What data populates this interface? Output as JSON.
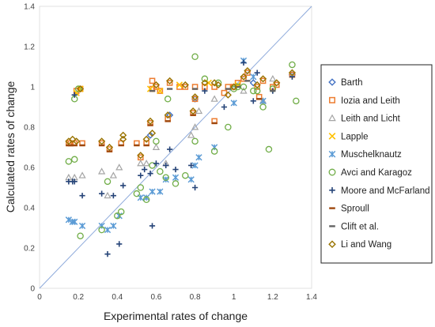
{
  "chart_data": {
    "type": "scatter",
    "xlabel": "Experimental rates of change",
    "ylabel": "Calculated rates of change",
    "xlim": [
      0,
      1.4
    ],
    "ylim": [
      0,
      1.4
    ],
    "x_ticks": [
      "0",
      "0.2",
      "0.4",
      "0.6",
      "0.8",
      "1",
      "1.2",
      "1.4"
    ],
    "y_ticks": [
      "0",
      "0.2",
      "0.4",
      "0.6",
      "0.8",
      "1",
      "1.2",
      "1.4"
    ],
    "grid": false,
    "legend_placement": "right",
    "reference_line": {
      "from": [
        0,
        0
      ],
      "to": [
        1.4,
        1.4
      ],
      "color": "#8eaadb"
    },
    "series": [
      {
        "name": "Barth",
        "marker": "diamond-open",
        "color": "#4472c4",
        "points": [
          [
            0.57,
            0.76
          ],
          [
            0.67,
            0.86
          ],
          [
            0.8,
            0.94
          ],
          [
            1.1,
            1.02
          ],
          [
            1.3,
            1.06
          ]
        ]
      },
      {
        "name": "Iozia and Leith",
        "marker": "square-open",
        "color": "#ed7d31",
        "points": [
          [
            0.15,
            0.72
          ],
          [
            0.16,
            0.72
          ],
          [
            0.18,
            0.72
          ],
          [
            0.22,
            0.72
          ],
          [
            0.32,
            0.72
          ],
          [
            0.36,
            0.69
          ],
          [
            0.42,
            0.72
          ],
          [
            0.5,
            0.72
          ],
          [
            0.52,
            0.65
          ],
          [
            0.55,
            0.72
          ],
          [
            0.57,
            0.82
          ],
          [
            0.58,
            1.03
          ],
          [
            0.58,
            0.99
          ],
          [
            0.6,
            1.0
          ],
          [
            0.62,
            0.98
          ],
          [
            0.66,
            0.84
          ],
          [
            0.67,
            1.02
          ],
          [
            0.72,
            1.0
          ],
          [
            0.75,
            1.0
          ],
          [
            0.79,
            0.87
          ],
          [
            0.8,
            0.94
          ],
          [
            0.8,
            1.0
          ],
          [
            0.85,
            1.0
          ],
          [
            0.9,
            0.83
          ],
          [
            0.9,
            1.0
          ],
          [
            0.95,
            0.97
          ],
          [
            0.97,
            1.0
          ],
          [
            1.0,
            1.0
          ],
          [
            1.02,
            1.02
          ],
          [
            1.05,
            1.04
          ],
          [
            1.07,
            1.07
          ],
          [
            1.12,
            1.0
          ],
          [
            1.13,
            0.95
          ],
          [
            1.15,
            1.03
          ],
          [
            1.2,
            1.0
          ],
          [
            1.22,
            1.01
          ],
          [
            1.3,
            1.06
          ],
          [
            0.19,
            0.98
          ],
          [
            0.21,
            0.99
          ]
        ]
      },
      {
        "name": "Leith and Licht",
        "marker": "triangle-open",
        "color": "#a5a5a5",
        "points": [
          [
            0.15,
            0.55
          ],
          [
            0.18,
            0.55
          ],
          [
            0.22,
            0.56
          ],
          [
            0.32,
            0.58
          ],
          [
            0.35,
            0.46
          ],
          [
            0.38,
            0.56
          ],
          [
            0.41,
            0.6
          ],
          [
            0.52,
            0.62
          ],
          [
            0.55,
            0.62
          ],
          [
            0.6,
            0.7
          ],
          [
            0.65,
            0.62
          ],
          [
            0.78,
            0.76
          ],
          [
            0.8,
            0.8
          ],
          [
            0.82,
            0.88
          ],
          [
            0.9,
            0.94
          ],
          [
            1.05,
            0.98
          ],
          [
            1.15,
            0.93
          ],
          [
            1.2,
            1.04
          ]
        ]
      },
      {
        "name": "Lapple",
        "marker": "x",
        "color": "#ffc000",
        "points": [
          [
            0.19,
            0.97
          ],
          [
            0.21,
            0.99
          ],
          [
            0.57,
            0.99
          ],
          [
            0.62,
            0.98
          ],
          [
            0.72,
            1.01
          ],
          [
            0.87,
            1.02
          ],
          [
            1.02,
            1.01
          ]
        ]
      },
      {
        "name": "Muschelknautz",
        "marker": "star",
        "color": "#5b9bd5",
        "points": [
          [
            0.15,
            0.34
          ],
          [
            0.17,
            0.33
          ],
          [
            0.18,
            0.33
          ],
          [
            0.22,
            0.31
          ],
          [
            0.32,
            0.31
          ],
          [
            0.35,
            0.29
          ],
          [
            0.38,
            0.31
          ],
          [
            0.41,
            0.36
          ],
          [
            0.52,
            0.45
          ],
          [
            0.55,
            0.45
          ],
          [
            0.58,
            0.48
          ],
          [
            0.62,
            0.48
          ],
          [
            0.65,
            0.54
          ],
          [
            0.7,
            0.55
          ],
          [
            0.78,
            0.54
          ],
          [
            0.8,
            0.61
          ],
          [
            0.82,
            0.65
          ],
          [
            0.9,
            0.7
          ],
          [
            1.0,
            0.92
          ],
          [
            1.05,
            1.13
          ],
          [
            1.1,
            1.05
          ],
          [
            1.15,
            0.93
          ]
        ]
      },
      {
        "name": "Avci and Karagoz",
        "marker": "circle-open",
        "color": "#70ad47",
        "points": [
          [
            0.15,
            0.63
          ],
          [
            0.18,
            0.64
          ],
          [
            0.18,
            0.94
          ],
          [
            0.2,
            0.99
          ],
          [
            0.21,
            0.26
          ],
          [
            0.32,
            0.29
          ],
          [
            0.35,
            0.53
          ],
          [
            0.4,
            0.36
          ],
          [
            0.42,
            0.38
          ],
          [
            0.5,
            0.47
          ],
          [
            0.52,
            0.5
          ],
          [
            0.55,
            0.44
          ],
          [
            0.58,
            0.61
          ],
          [
            0.6,
            0.73
          ],
          [
            0.62,
            0.58
          ],
          [
            0.65,
            0.55
          ],
          [
            0.66,
            0.94
          ],
          [
            0.7,
            0.52
          ],
          [
            0.75,
            0.56
          ],
          [
            0.8,
            0.73
          ],
          [
            0.8,
            1.15
          ],
          [
            0.85,
            1.04
          ],
          [
            0.9,
            0.68
          ],
          [
            0.92,
            1.02
          ],
          [
            0.97,
            0.8
          ],
          [
            1.0,
            0.99
          ],
          [
            1.02,
            1.0
          ],
          [
            1.05,
            1.0
          ],
          [
            1.1,
            0.98
          ],
          [
            1.12,
            0.98
          ],
          [
            1.15,
            0.9
          ],
          [
            1.18,
            0.69
          ],
          [
            1.2,
            0.99
          ],
          [
            1.3,
            1.11
          ],
          [
            1.32,
            0.93
          ]
        ]
      },
      {
        "name": "Moore and McFarland",
        "marker": "plus",
        "color": "#264478",
        "points": [
          [
            0.15,
            0.53
          ],
          [
            0.17,
            0.53
          ],
          [
            0.18,
            0.53
          ],
          [
            0.18,
            0.96
          ],
          [
            0.22,
            0.46
          ],
          [
            0.32,
            0.47
          ],
          [
            0.35,
            0.17
          ],
          [
            0.38,
            0.46
          ],
          [
            0.41,
            0.22
          ],
          [
            0.43,
            0.51
          ],
          [
            0.52,
            0.56
          ],
          [
            0.54,
            0.59
          ],
          [
            0.57,
            0.57
          ],
          [
            0.58,
            0.31
          ],
          [
            0.6,
            0.62
          ],
          [
            0.65,
            0.61
          ],
          [
            0.67,
            0.69
          ],
          [
            0.7,
            0.59
          ],
          [
            0.78,
            0.61
          ],
          [
            0.8,
            0.5
          ],
          [
            0.85,
            0.98
          ],
          [
            0.95,
            0.9
          ],
          [
            1.05,
            1.12
          ],
          [
            1.1,
            0.93
          ],
          [
            1.12,
            1.07
          ],
          [
            1.2,
            0.98
          ],
          [
            1.3,
            1.05
          ]
        ]
      },
      {
        "name": "Sproull",
        "marker": "dash",
        "color": "#9e480e",
        "points": [
          [
            0.15,
            0.71
          ],
          [
            0.16,
            0.71
          ],
          [
            0.18,
            0.71
          ],
          [
            0.22,
            0.71
          ],
          [
            0.32,
            0.71
          ],
          [
            0.36,
            0.68
          ],
          [
            0.42,
            0.71
          ],
          [
            0.5,
            0.71
          ],
          [
            0.55,
            0.71
          ],
          [
            0.57,
            0.81
          ],
          [
            0.66,
            0.83
          ],
          [
            0.79,
            0.86
          ],
          [
            0.9,
            0.82
          ],
          [
            1.13,
            0.94
          ]
        ]
      },
      {
        "name": "Clift et al.",
        "marker": "dash",
        "color": "#636363",
        "points": [
          [
            0.58,
            0.98
          ],
          [
            0.67,
            0.99
          ],
          [
            0.8,
            0.99
          ],
          [
            0.97,
            0.99
          ],
          [
            1.02,
            1.0
          ],
          [
            1.07,
            1.03
          ],
          [
            1.2,
            0.98
          ]
        ]
      },
      {
        "name": "Li and Wang",
        "marker": "diamond-open",
        "color": "#997300",
        "points": [
          [
            0.15,
            0.73
          ],
          [
            0.17,
            0.74
          ],
          [
            0.19,
            0.73
          ],
          [
            0.21,
            0.99
          ],
          [
            0.32,
            0.73
          ],
          [
            0.36,
            0.7
          ],
          [
            0.43,
            0.74
          ],
          [
            0.43,
            0.76
          ],
          [
            0.52,
            0.66
          ],
          [
            0.55,
            0.74
          ],
          [
            0.57,
            0.83
          ],
          [
            0.58,
            0.77
          ],
          [
            0.6,
            1.01
          ],
          [
            0.66,
            0.86
          ],
          [
            0.67,
            1.03
          ],
          [
            0.75,
            1.01
          ],
          [
            0.79,
            0.88
          ],
          [
            0.8,
            0.95
          ],
          [
            0.85,
            1.02
          ],
          [
            0.9,
            1.02
          ],
          [
            0.92,
            1.01
          ],
          [
            0.97,
            0.96
          ],
          [
            1.0,
            1.0
          ],
          [
            1.05,
            1.05
          ],
          [
            1.07,
            1.08
          ],
          [
            1.12,
            1.01
          ],
          [
            1.15,
            1.04
          ],
          [
            1.22,
            1.02
          ],
          [
            1.3,
            1.07
          ]
        ]
      }
    ]
  }
}
